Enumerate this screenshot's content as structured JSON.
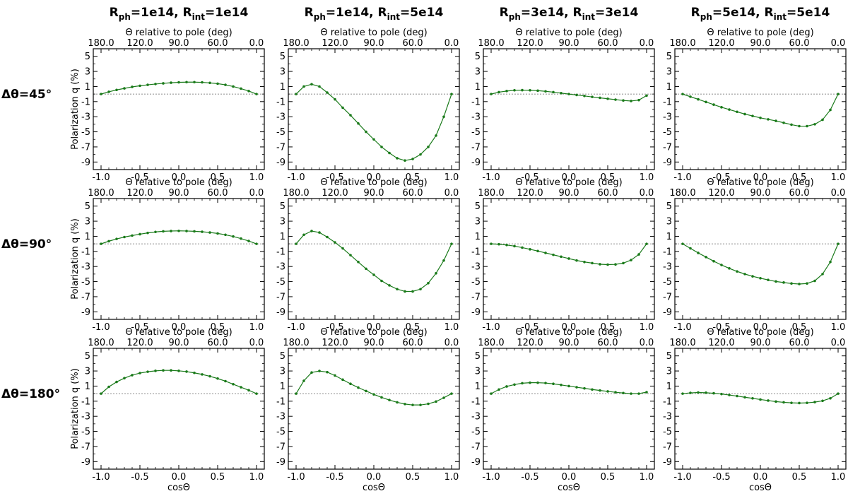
{
  "figure": {
    "top_axis_label": "Θ relative to pole (deg)",
    "bottom_axis_label": "cosΘ",
    "y_axis_label": "Polarization q (%)",
    "col_titles": [
      {
        "a": "R",
        "a_sub": "ph",
        "b": "=1e14, R",
        "b_sub": "int",
        "c": "=1e14"
      },
      {
        "a": "R",
        "a_sub": "ph",
        "b": "=1e14, R",
        "b_sub": "int",
        "c": "=5e14"
      },
      {
        "a": "R",
        "a_sub": "ph",
        "b": "=3e14, R",
        "b_sub": "int",
        "c": "=3e14"
      },
      {
        "a": "R",
        "a_sub": "ph",
        "b": "=5e14, R",
        "b_sub": "int",
        "c": "=5e14"
      }
    ],
    "row_labels": [
      "Δθ=45°",
      "Δθ=90°",
      "Δθ=180°"
    ],
    "colors": {
      "series": "#1a7a1a",
      "zero_line": "#666666",
      "frame": "#000000"
    }
  },
  "chart_data": {
    "type": "line",
    "layout": "grid 3 rows x 4 columns",
    "x": [
      -1.0,
      -0.9,
      -0.8,
      -0.7,
      -0.6,
      -0.5,
      -0.4,
      -0.3,
      -0.2,
      -0.1,
      0.0,
      0.1,
      0.2,
      0.3,
      0.4,
      0.5,
      0.6,
      0.7,
      0.8,
      0.9,
      1.0
    ],
    "xlim": [
      -1.1,
      1.1
    ],
    "ylim": [
      -10,
      6
    ],
    "x_ticks": [
      "-1.0",
      "-0.5",
      "0.0",
      "0.5",
      "1.0"
    ],
    "x_tick_values": [
      -1.0,
      -0.5,
      0.0,
      0.5,
      1.0
    ],
    "top_ticks": [
      "180.0",
      "120.0",
      "90.0",
      "60.0",
      "0.0"
    ],
    "top_tick_values": [
      180,
      120,
      90,
      60,
      0
    ],
    "y_ticks": [
      "5",
      "3",
      "1",
      "-1",
      "-3",
      "-5",
      "-7",
      "-9"
    ],
    "y_tick_values": [
      5,
      3,
      1,
      -1,
      -3,
      -5,
      -7,
      -9
    ],
    "reference_line_y": 0,
    "panels": [
      {
        "row": 0,
        "col": 0,
        "values": [
          0.0,
          0.3,
          0.55,
          0.75,
          0.95,
          1.1,
          1.22,
          1.33,
          1.42,
          1.5,
          1.55,
          1.58,
          1.58,
          1.55,
          1.48,
          1.38,
          1.22,
          1.0,
          0.72,
          0.4,
          0.0
        ]
      },
      {
        "row": 0,
        "col": 1,
        "values": [
          0.0,
          1.0,
          1.3,
          1.0,
          0.2,
          -0.7,
          -1.8,
          -2.8,
          -3.9,
          -5.0,
          -6.0,
          -7.0,
          -7.8,
          -8.5,
          -8.8,
          -8.6,
          -8.0,
          -7.0,
          -5.5,
          -3.0,
          0.0
        ]
      },
      {
        "row": 0,
        "col": 2,
        "values": [
          0.0,
          0.25,
          0.4,
          0.5,
          0.52,
          0.5,
          0.45,
          0.36,
          0.25,
          0.12,
          0.0,
          -0.12,
          -0.25,
          -0.38,
          -0.5,
          -0.62,
          -0.74,
          -0.85,
          -0.92,
          -0.8,
          -0.2
        ]
      },
      {
        "row": 0,
        "col": 3,
        "values": [
          0.0,
          -0.35,
          -0.7,
          -1.05,
          -1.4,
          -1.75,
          -2.05,
          -2.35,
          -2.65,
          -2.9,
          -3.15,
          -3.35,
          -3.55,
          -3.8,
          -4.05,
          -4.25,
          -4.25,
          -4.0,
          -3.4,
          -2.1,
          0.0
        ]
      },
      {
        "row": 1,
        "col": 0,
        "values": [
          0.0,
          0.35,
          0.65,
          0.9,
          1.1,
          1.28,
          1.45,
          1.58,
          1.66,
          1.7,
          1.72,
          1.7,
          1.66,
          1.6,
          1.5,
          1.38,
          1.2,
          0.98,
          0.7,
          0.38,
          0.0
        ]
      },
      {
        "row": 1,
        "col": 1,
        "values": [
          0.0,
          1.2,
          1.7,
          1.5,
          0.9,
          0.2,
          -0.6,
          -1.5,
          -2.4,
          -3.3,
          -4.1,
          -4.9,
          -5.5,
          -6.0,
          -6.3,
          -6.3,
          -6.0,
          -5.2,
          -3.9,
          -2.2,
          0.0
        ]
      },
      {
        "row": 1,
        "col": 2,
        "values": [
          0.0,
          -0.05,
          -0.15,
          -0.3,
          -0.5,
          -0.72,
          -0.95,
          -1.2,
          -1.45,
          -1.7,
          -1.95,
          -2.2,
          -2.4,
          -2.55,
          -2.7,
          -2.75,
          -2.72,
          -2.55,
          -2.15,
          -1.4,
          0.0
        ]
      },
      {
        "row": 1,
        "col": 3,
        "values": [
          0.0,
          -0.6,
          -1.2,
          -1.75,
          -2.3,
          -2.8,
          -3.25,
          -3.65,
          -4.0,
          -4.3,
          -4.55,
          -4.78,
          -4.98,
          -5.12,
          -5.25,
          -5.32,
          -5.25,
          -4.9,
          -4.0,
          -2.4,
          0.0
        ]
      },
      {
        "row": 2,
        "col": 0,
        "values": [
          0.0,
          0.9,
          1.55,
          2.05,
          2.45,
          2.72,
          2.9,
          3.02,
          3.08,
          3.08,
          3.02,
          2.92,
          2.75,
          2.55,
          2.3,
          2.0,
          1.65,
          1.25,
          0.85,
          0.45,
          0.0
        ]
      },
      {
        "row": 2,
        "col": 1,
        "values": [
          0.0,
          1.7,
          2.8,
          3.0,
          2.85,
          2.4,
          1.85,
          1.3,
          0.8,
          0.35,
          -0.1,
          -0.5,
          -0.85,
          -1.15,
          -1.38,
          -1.5,
          -1.5,
          -1.35,
          -1.05,
          -0.55,
          0.0
        ]
      },
      {
        "row": 2,
        "col": 2,
        "values": [
          0.0,
          0.55,
          0.95,
          1.2,
          1.38,
          1.45,
          1.45,
          1.4,
          1.3,
          1.15,
          1.0,
          0.85,
          0.7,
          0.55,
          0.42,
          0.3,
          0.18,
          0.08,
          0.0,
          0.0,
          0.2
        ]
      },
      {
        "row": 2,
        "col": 3,
        "values": [
          0.0,
          0.1,
          0.15,
          0.12,
          0.05,
          -0.05,
          -0.18,
          -0.32,
          -0.48,
          -0.62,
          -0.78,
          -0.92,
          -1.05,
          -1.15,
          -1.22,
          -1.25,
          -1.22,
          -1.12,
          -0.95,
          -0.62,
          0.0
        ]
      }
    ]
  }
}
